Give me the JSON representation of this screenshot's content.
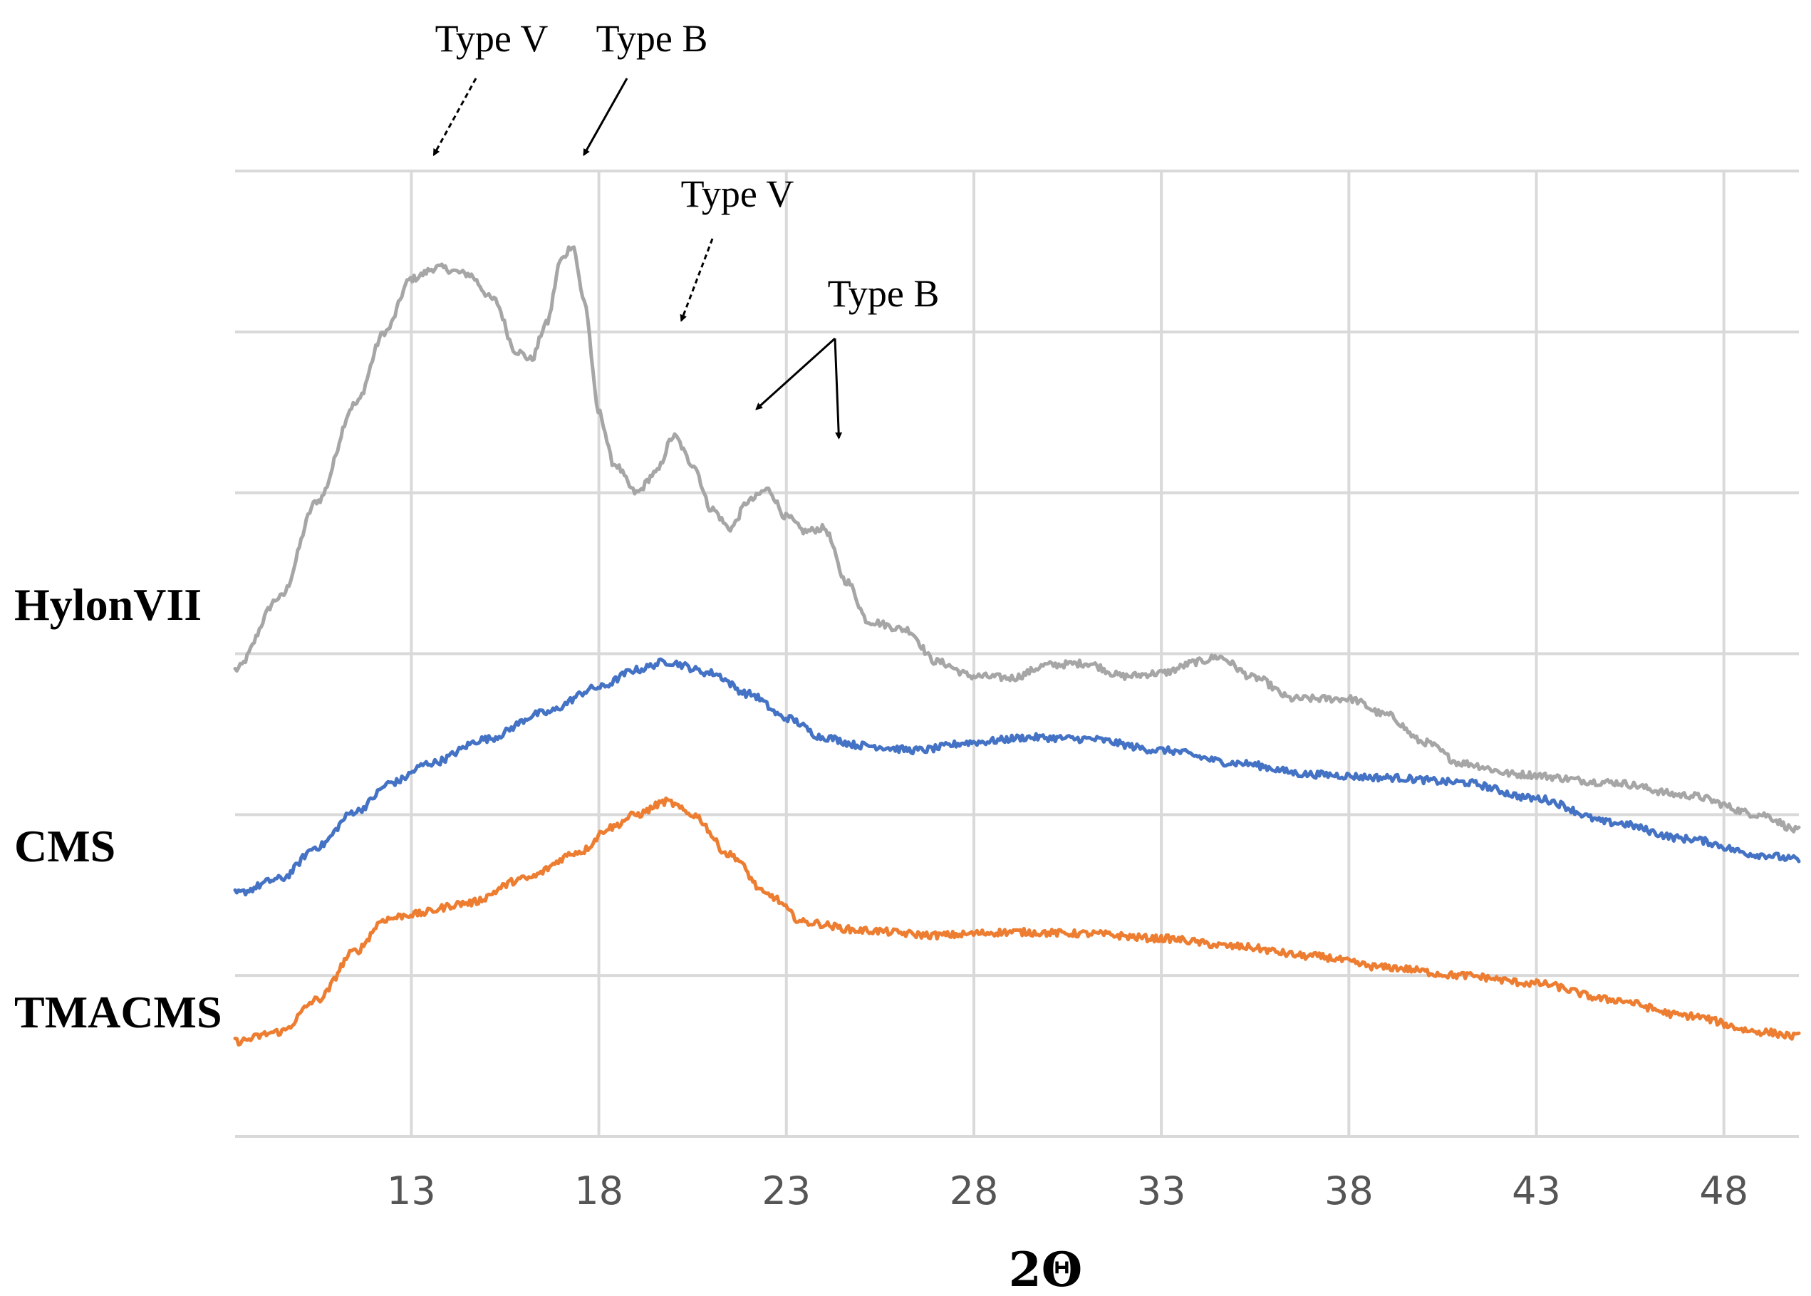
{
  "chart_data": {
    "type": "line",
    "xlabel": "2Θ",
    "x_ticks": [
      13,
      18,
      23,
      28,
      33,
      38,
      43,
      48
    ],
    "x_range": [
      8.3,
      50
    ],
    "y_range": [
      0,
      6
    ],
    "y_axis_labels_shown": false,
    "grid": true,
    "series": [
      {
        "name": "HylonVII",
        "color": "#a6a6a6",
        "points": [
          [
            8.3,
            2.9
          ],
          [
            9.5,
            3.35
          ],
          [
            10.5,
            3.95
          ],
          [
            11.5,
            4.55
          ],
          [
            12.3,
            5.0
          ],
          [
            13.0,
            5.33
          ],
          [
            13.7,
            5.4
          ],
          [
            14.5,
            5.36
          ],
          [
            15.2,
            5.2
          ],
          [
            15.8,
            4.88
          ],
          [
            16.2,
            4.83
          ],
          [
            16.6,
            5.05
          ],
          [
            17.0,
            5.45
          ],
          [
            17.3,
            5.54
          ],
          [
            17.6,
            5.2
          ],
          [
            18.0,
            4.5
          ],
          [
            18.4,
            4.18
          ],
          [
            19.0,
            4.0
          ],
          [
            19.5,
            4.12
          ],
          [
            20.0,
            4.35
          ],
          [
            20.5,
            4.18
          ],
          [
            21.0,
            3.9
          ],
          [
            21.5,
            3.78
          ],
          [
            22.0,
            3.95
          ],
          [
            22.5,
            4.02
          ],
          [
            23.0,
            3.85
          ],
          [
            23.5,
            3.76
          ],
          [
            24.0,
            3.78
          ],
          [
            24.6,
            3.45
          ],
          [
            25.2,
            3.2
          ],
          [
            26.2,
            3.15
          ],
          [
            27.0,
            2.95
          ],
          [
            28.0,
            2.86
          ],
          [
            29.0,
            2.85
          ],
          [
            30.0,
            2.93
          ],
          [
            31.0,
            2.94
          ],
          [
            32.0,
            2.86
          ],
          [
            33.0,
            2.88
          ],
          [
            34.0,
            2.95
          ],
          [
            34.5,
            2.98
          ],
          [
            35.5,
            2.85
          ],
          [
            36.5,
            2.72
          ],
          [
            38.0,
            2.72
          ],
          [
            39.0,
            2.62
          ],
          [
            40.0,
            2.45
          ],
          [
            41.0,
            2.32
          ],
          [
            42.5,
            2.25
          ],
          [
            45.0,
            2.2
          ],
          [
            47.0,
            2.12
          ],
          [
            49.0,
            2.0
          ],
          [
            50.0,
            1.9
          ]
        ]
      },
      {
        "name": "CMS",
        "color": "#4472c4",
        "points": [
          [
            8.3,
            1.51
          ],
          [
            9.5,
            1.6
          ],
          [
            10.5,
            1.8
          ],
          [
            11.5,
            2.02
          ],
          [
            12.5,
            2.2
          ],
          [
            13.5,
            2.32
          ],
          [
            15.0,
            2.47
          ],
          [
            16.5,
            2.63
          ],
          [
            18.0,
            2.79
          ],
          [
            19.0,
            2.9
          ],
          [
            19.8,
            2.95
          ],
          [
            21.0,
            2.88
          ],
          [
            22.0,
            2.75
          ],
          [
            23.0,
            2.6
          ],
          [
            24.0,
            2.48
          ],
          [
            25.0,
            2.43
          ],
          [
            26.5,
            2.4
          ],
          [
            28.0,
            2.45
          ],
          [
            29.5,
            2.48
          ],
          [
            31.0,
            2.47
          ],
          [
            33.0,
            2.4
          ],
          [
            35.0,
            2.32
          ],
          [
            37.0,
            2.25
          ],
          [
            39.0,
            2.23
          ],
          [
            41.0,
            2.2
          ],
          [
            43.0,
            2.1
          ],
          [
            45.0,
            1.95
          ],
          [
            47.0,
            1.85
          ],
          [
            49.0,
            1.75
          ],
          [
            50.0,
            1.72
          ]
        ]
      },
      {
        "name": "TMACMS",
        "color": "#ed7d31",
        "points": [
          [
            8.3,
            0.59
          ],
          [
            9.5,
            0.65
          ],
          [
            10.5,
            0.85
          ],
          [
            11.5,
            1.15
          ],
          [
            12.3,
            1.35
          ],
          [
            13.0,
            1.38
          ],
          [
            14.5,
            1.45
          ],
          [
            16.0,
            1.6
          ],
          [
            17.5,
            1.77
          ],
          [
            18.3,
            1.92
          ],
          [
            19.0,
            2.0
          ],
          [
            19.8,
            2.08
          ],
          [
            20.5,
            2.0
          ],
          [
            21.5,
            1.75
          ],
          [
            22.5,
            1.5
          ],
          [
            23.5,
            1.33
          ],
          [
            25.0,
            1.28
          ],
          [
            27.0,
            1.25
          ],
          [
            29.0,
            1.27
          ],
          [
            31.0,
            1.26
          ],
          [
            33.0,
            1.23
          ],
          [
            35.0,
            1.18
          ],
          [
            37.0,
            1.12
          ],
          [
            39.0,
            1.05
          ],
          [
            41.0,
            1.0
          ],
          [
            43.0,
            0.95
          ],
          [
            45.0,
            0.85
          ],
          [
            47.0,
            0.75
          ],
          [
            49.0,
            0.65
          ],
          [
            50.0,
            0.62
          ]
        ]
      }
    ],
    "annotations": [
      {
        "text": "Type V",
        "style": "dashed",
        "targets": [
          [
            13.6,
            6.1
          ]
        ]
      },
      {
        "text": "Type B",
        "style": "solid",
        "targets": [
          [
            17.6,
            6.1
          ]
        ]
      },
      {
        "text": "Type V",
        "style": "dashed",
        "targets": [
          [
            20.2,
            5.07
          ]
        ]
      },
      {
        "text": "Type B",
        "style": "solid",
        "targets": [
          [
            22.2,
            4.52
          ],
          [
            24.4,
            4.34
          ]
        ]
      }
    ]
  }
}
